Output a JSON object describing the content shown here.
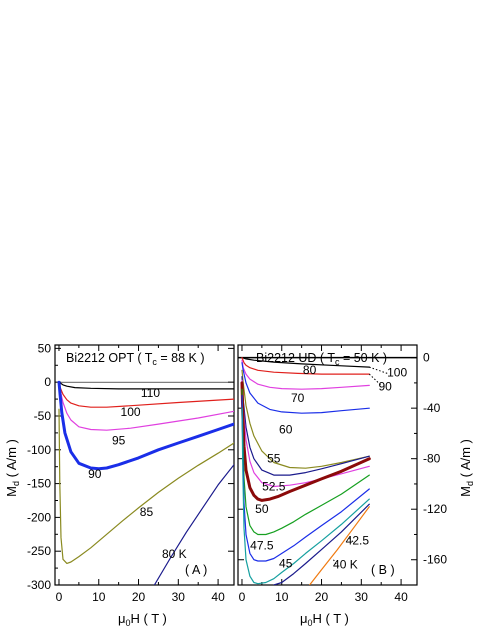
{
  "chart_data": [
    {
      "type": "line",
      "panel": "A",
      "title": "Bi2212  OPT  ( T",
      "title_sub": "c",
      "title_tail": " = 88 K )",
      "xlabel": "μ",
      "xlabel_sub": "0",
      "xlabel_tail": "H ( T )",
      "ylabel": "M",
      "ylabel_sub": "d",
      "ylabel_tail": " ( A/m )",
      "panel_label": "( A )",
      "xlim": [
        -1,
        44
      ],
      "ylim": [
        -300,
        55
      ],
      "x_ticks": [
        0,
        10,
        20,
        30,
        40
      ],
      "y_ticks": [
        50,
        0,
        -50,
        -100,
        -150,
        -200,
        -250,
        -300
      ],
      "series": [
        {
          "name": "110",
          "label": "110",
          "color": "#000000",
          "width": 1.2,
          "x": [
            0,
            0.5,
            1,
            2,
            4,
            8,
            15,
            25,
            35,
            44
          ],
          "y": [
            0,
            -2,
            -4,
            -6,
            -8,
            -9,
            -10,
            -10,
            -10,
            -10
          ],
          "label_at": [
            23,
            -22
          ]
        },
        {
          "name": "100",
          "label": "100",
          "color": "#e0201c",
          "width": 1.2,
          "x": [
            0,
            0.3,
            1,
            2,
            3,
            5,
            8,
            12,
            20,
            30,
            44
          ],
          "y": [
            0,
            -8,
            -18,
            -26,
            -31,
            -35,
            -37,
            -37,
            -34,
            -30,
            -25
          ],
          "label_at": [
            18,
            -50
          ]
        },
        {
          "name": "95",
          "label": "95",
          "color": "#e040e0",
          "width": 1.2,
          "x": [
            0,
            0.3,
            1,
            2,
            3,
            5,
            8,
            12,
            18,
            25,
            35,
            44
          ],
          "y": [
            0,
            -12,
            -30,
            -46,
            -56,
            -66,
            -70,
            -71,
            -68,
            -62,
            -53,
            -43
          ],
          "label_at": [
            15,
            -92
          ]
        },
        {
          "name": "90",
          "label": "90",
          "color": "#1a2ee8",
          "width": 3,
          "x": [
            0,
            0.3,
            0.7,
            1.5,
            3,
            5,
            8,
            10,
            12,
            15,
            20,
            25,
            30,
            35,
            40,
            44
          ],
          "y": [
            0,
            -20,
            -45,
            -75,
            -103,
            -120,
            -127,
            -128,
            -127,
            -122,
            -112,
            -100,
            -90,
            -80,
            -70,
            -62
          ],
          "label_at": [
            9,
            -142
          ]
        },
        {
          "name": "85",
          "label": "85",
          "color": "#8a8a20",
          "width": 1.2,
          "x": [
            0,
            0.2,
            0.5,
            1,
            2,
            3,
            5,
            8,
            12,
            16,
            20,
            25,
            30,
            35,
            40,
            44
          ],
          "y": [
            -40,
            -150,
            -230,
            -262,
            -268,
            -266,
            -258,
            -245,
            -225,
            -205,
            -186,
            -163,
            -142,
            -123,
            -105,
            -90
          ],
          "label_at": [
            22,
            -198
          ]
        },
        {
          "name": "80 K",
          "label": "80 K",
          "color": "#1a1a8c",
          "width": 1.2,
          "x": [
            24,
            28,
            32,
            36,
            40,
            44
          ],
          "y": [
            -300,
            -260,
            -222,
            -187,
            -152,
            -122
          ],
          "label_at": [
            29,
            -260
          ]
        }
      ]
    },
    {
      "type": "line",
      "panel": "B",
      "title": "Bi2212  UD  ( T",
      "title_sub": "c",
      "title_tail": " = 50 K )",
      "xlabel": "μ",
      "xlabel_sub": "0",
      "xlabel_tail": "H ( T )",
      "ylabel": "M",
      "ylabel_sub": "d",
      "ylabel_tail": " ( A/m )",
      "panel_label": "( B )",
      "xlim": [
        -1,
        44
      ],
      "ylim": [
        -180,
        10
      ],
      "x_ticks": [
        0,
        10,
        20,
        30,
        40
      ],
      "y_ticks": [
        0,
        -40,
        -80,
        -120,
        -160
      ],
      "series": [
        {
          "name": "100",
          "label": "100",
          "color": "#000000",
          "width": 1.2,
          "x": [
            0,
            1,
            3,
            8,
            15,
            25,
            32
          ],
          "y": [
            0,
            -1,
            -2,
            -3.5,
            -5,
            -6.5,
            -7.5
          ],
          "label_at": [
            39,
            -15
          ]
        },
        {
          "name": "90",
          "label": "90",
          "color": "#e0201c",
          "width": 1.2,
          "x": [
            0,
            0.5,
            1,
            2,
            4,
            8,
            14,
            20,
            26,
            32
          ],
          "y": [
            0,
            -4,
            -6,
            -8,
            -10,
            -11.5,
            -12.5,
            -13,
            -13,
            -13
          ],
          "label_at": [
            36,
            -26
          ]
        },
        {
          "name": "80",
          "label": "80",
          "color": "#e040e0",
          "width": 1.2,
          "x": [
            0,
            0.3,
            1,
            2,
            4,
            7,
            10,
            15,
            20,
            25,
            32
          ],
          "y": [
            -2,
            -8,
            -13,
            -17,
            -21,
            -23.5,
            -24.5,
            -25,
            -24.5,
            -23.5,
            -22
          ],
          "label_at": [
            17,
            -13
          ]
        },
        {
          "name": "70",
          "label": "70",
          "color": "#1a2ee8",
          "width": 1.2,
          "x": [
            0,
            0.3,
            1,
            2,
            4,
            7,
            10,
            15,
            20,
            25,
            32
          ],
          "y": [
            -4,
            -10,
            -20,
            -28,
            -36,
            -41,
            -43,
            -44,
            -43.5,
            -42,
            -40
          ],
          "label_at": [
            14,
            -35
          ]
        },
        {
          "name": "60",
          "label": "60",
          "color": "#8a8a20",
          "width": 1.2,
          "x": [
            0,
            0.3,
            1,
            2,
            3,
            5,
            8,
            12,
            16,
            20,
            25,
            32
          ],
          "y": [
            -10,
            -20,
            -38,
            -52,
            -62,
            -74,
            -83,
            -87,
            -87.5,
            -86,
            -83,
            -78
          ],
          "label_at": [
            11,
            -60
          ]
        },
        {
          "name": "55",
          "label": "55",
          "color": "#1a1a8c",
          "width": 1.2,
          "x": [
            0,
            0.2,
            1,
            2,
            3,
            5,
            8,
            12,
            16,
            20,
            25,
            32
          ],
          "y": [
            -15,
            -30,
            -55,
            -71,
            -80,
            -89,
            -93,
            -93,
            -91,
            -88,
            -84,
            -78
          ],
          "label_at": [
            8,
            -83
          ]
        },
        {
          "name": "52.5",
          "label": "52.5",
          "color": "#e040e0",
          "width": 1.2,
          "x": [
            0,
            0.2,
            1,
            2,
            3,
            5,
            8,
            12,
            16,
            20,
            25,
            32
          ],
          "y": [
            -18,
            -35,
            -65,
            -82,
            -91,
            -99,
            -102,
            -101,
            -99,
            -96,
            -92,
            -86
          ],
          "label_at": [
            8,
            -105
          ]
        },
        {
          "name": "52.5 (bold)",
          "label": "",
          "color": "#8b0a0a",
          "width": 3,
          "x": [
            0,
            0.2,
            0.5,
            1,
            2,
            3,
            4,
            5,
            7,
            9,
            12,
            16,
            20,
            25,
            32
          ],
          "y": [
            -20,
            -45,
            -70,
            -89,
            -103,
            -109,
            -112,
            -113,
            -112,
            -110,
            -106,
            -101,
            -96,
            -90,
            -80
          ],
          "label_at": null
        },
        {
          "name": "50",
          "label": "50",
          "color": "#16a020",
          "width": 1.2,
          "x": [
            0,
            0.2,
            0.5,
            1,
            2,
            3,
            4,
            6,
            8,
            10,
            13,
            16,
            20,
            25,
            32
          ],
          "y": [
            -25,
            -60,
            -95,
            -118,
            -133,
            -138,
            -140,
            -140,
            -138,
            -135,
            -130,
            -124,
            -117,
            -108,
            -93
          ],
          "label_at": [
            5,
            -123
          ]
        },
        {
          "name": "47.5",
          "label": "47.5",
          "color": "#1a2ee8",
          "width": 1.2,
          "x": [
            0,
            0.2,
            0.5,
            1,
            2,
            3,
            4,
            6,
            8,
            10,
            13,
            16,
            20,
            25,
            32
          ],
          "y": [
            -30,
            -75,
            -115,
            -140,
            -155,
            -160,
            -161,
            -161,
            -159,
            -155,
            -149,
            -142,
            -133,
            -122,
            -104
          ],
          "label_at": [
            5,
            -152
          ]
        },
        {
          "name": "45",
          "label": "45",
          "color": "#16a0a0",
          "width": 1.2,
          "x": [
            0,
            0.2,
            0.5,
            1,
            2,
            3,
            4,
            6,
            8,
            10,
            13,
            16,
            20,
            25,
            32
          ],
          "y": [
            -40,
            -90,
            -135,
            -160,
            -173,
            -178,
            -179,
            -178,
            -175,
            -170,
            -163,
            -155,
            -145,
            -132,
            -112
          ],
          "label_at": [
            11,
            -166
          ]
        },
        {
          "name": "42.5",
          "label": "42.5",
          "color": "#1a1a8c",
          "width": 1.2,
          "x": [
            8,
            10,
            13,
            16,
            20,
            25,
            32
          ],
          "y": [
            -180,
            -178,
            -171,
            -163,
            -152,
            -138,
            -116
          ],
          "label_at": [
            29,
            -148
          ]
        },
        {
          "name": "40 K",
          "label": "40 K",
          "color": "#f07a10",
          "width": 1.2,
          "x": [
            17,
            20,
            24,
            28,
            32
          ],
          "y": [
            -180,
            -168,
            -152,
            -135,
            -118
          ],
          "label_at": [
            26,
            -167
          ]
        }
      ]
    }
  ]
}
